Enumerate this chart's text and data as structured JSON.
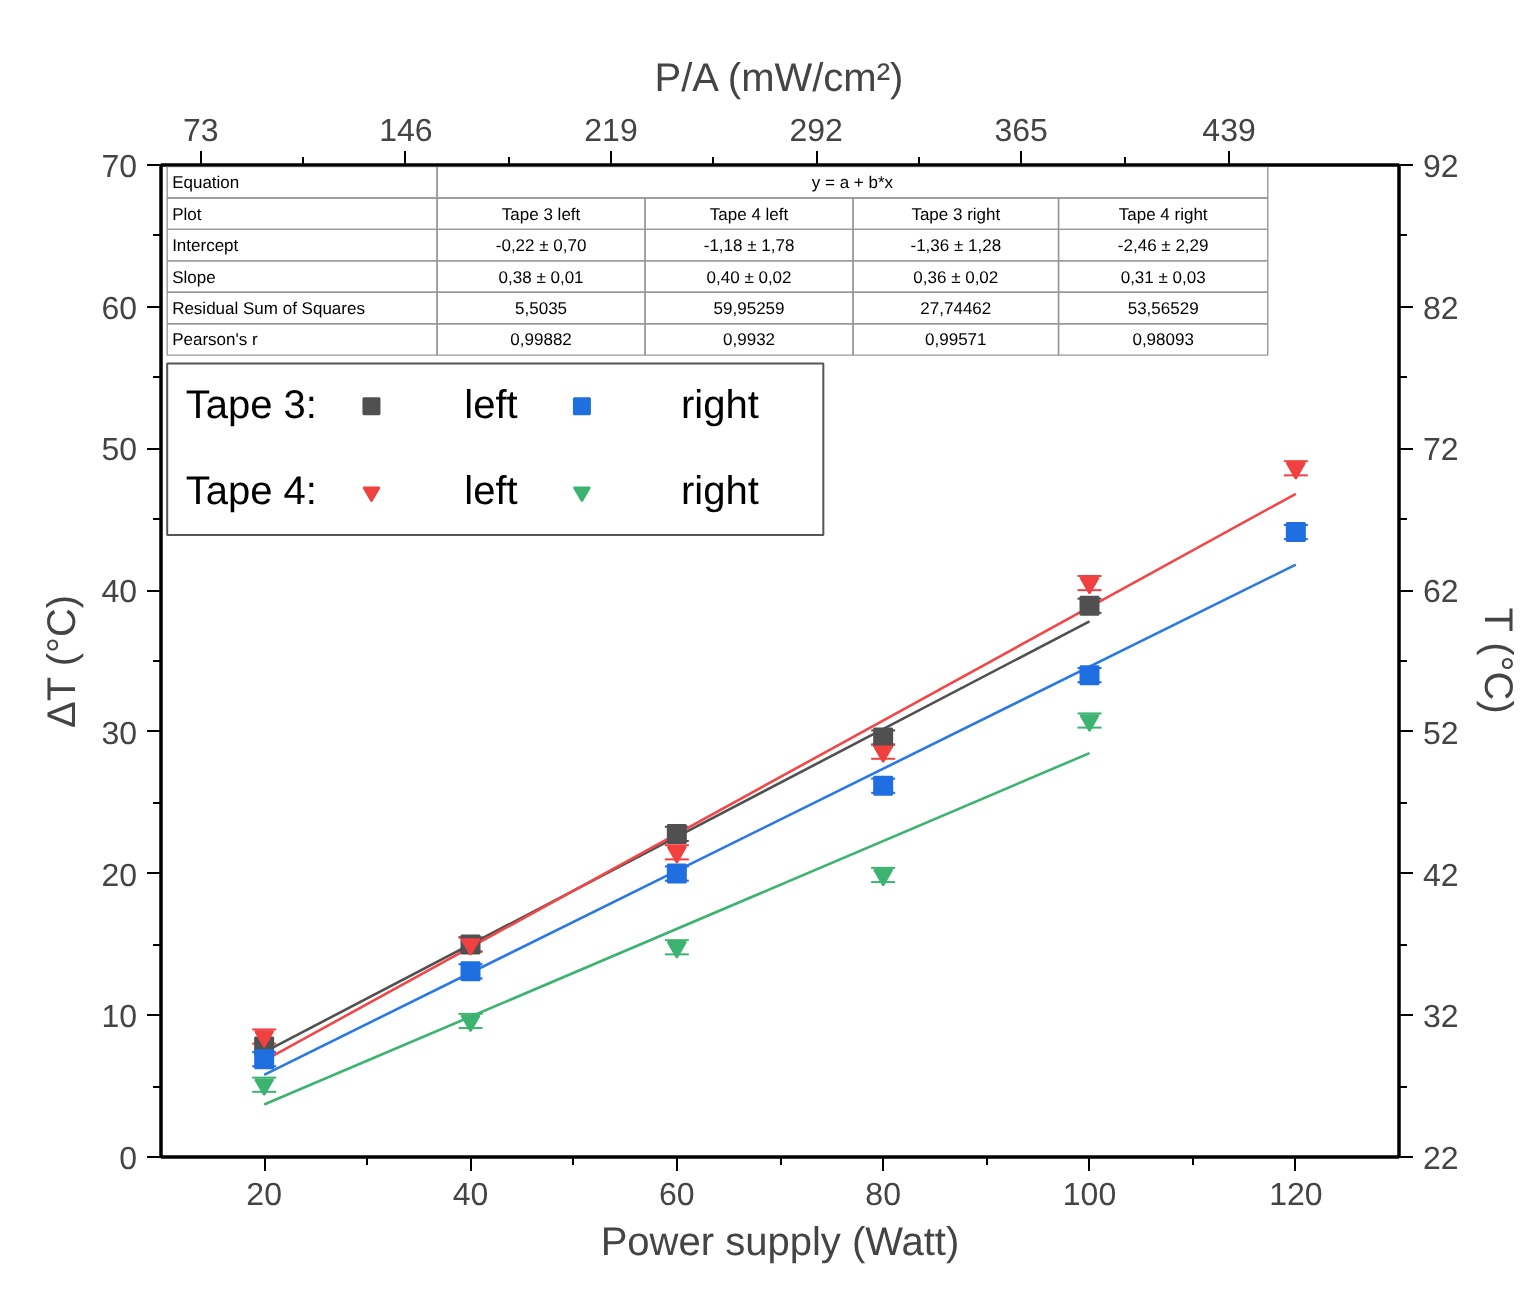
{
  "chart_data": {
    "type": "scatter",
    "xlabel": "Power supply (Watt)",
    "ylabel": "ΔT (°C)",
    "y2label": "T (°C)",
    "x2label": "P/A (mW/cm²)",
    "xlim": [
      10,
      130
    ],
    "xticks": [
      20,
      40,
      60,
      80,
      100,
      120
    ],
    "ylim": [
      0,
      70
    ],
    "yticks": [
      0,
      10,
      20,
      30,
      40,
      50,
      60,
      70
    ],
    "y2lim": [
      22,
      92
    ],
    "y2ticks": [
      22,
      32,
      42,
      52,
      62,
      72,
      82,
      92
    ],
    "x2lim": [
      58.8,
      499.5
    ],
    "x2ticks": [
      73,
      146,
      219,
      292,
      365,
      439
    ],
    "grid": false,
    "legend": "top left",
    "series": [
      {
        "type": "line",
        "color": "#505050",
        "x": [
          20,
          100
        ],
        "values": [
          7.4,
          37.8
        ]
      },
      {
        "type": "line",
        "color": "#f04848",
        "x": [
          20,
          120
        ],
        "values": [
          6.8,
          46.8
        ]
      },
      {
        "type": "line",
        "color": "#2a78e4",
        "x": [
          20,
          120
        ],
        "values": [
          5.8,
          41.8
        ]
      },
      {
        "type": "line",
        "color": "#3cb371",
        "x": [
          20,
          100
        ],
        "values": [
          3.7,
          28.5
        ]
      },
      {
        "name": "left",
        "color": "#505050",
        "marker": "square",
        "x": [
          20,
          40,
          60,
          80,
          100
        ],
        "values": [
          7.8,
          15.0,
          22.8,
          29.6,
          38.9
        ],
        "errors": [
          null,
          0.5,
          0.5,
          0.5,
          0.5
        ]
      },
      {
        "name": "right",
        "color": "#1f6fe0",
        "marker": "square",
        "x": [
          20,
          40,
          60,
          80,
          100,
          120
        ],
        "values": [
          6.9,
          13.1,
          20.0,
          26.2,
          34.0,
          44.1
        ],
        "errors": [
          0.5,
          0.5,
          0.5,
          0.5,
          0.5,
          0.5
        ]
      },
      {
        "name": "left",
        "color": "#f04040",
        "marker": "triangle",
        "x": [
          20,
          40,
          60,
          80,
          100,
          120
        ],
        "values": [
          8.5,
          15.0,
          21.5,
          28.6,
          40.5,
          48.6
        ],
        "errors": [
          0.5,
          0.5,
          0.5,
          0.5,
          0.5,
          0.5
        ]
      },
      {
        "name": "right",
        "color": "#3cb371",
        "marker": "triangle",
        "x": [
          20,
          40,
          60,
          80,
          100
        ],
        "values": [
          5.1,
          9.6,
          14.8,
          19.9,
          30.8
        ],
        "errors": [
          0.5,
          0.5,
          0.5,
          0.5,
          0.5
        ]
      }
    ],
    "annotations": [
      "Equation",
      "y = a + b*x",
      "Plot",
      "Tape 3 left",
      "Tape 4 left",
      "Tape 3 right",
      "Tape 4 right",
      "Intercept",
      "-0,22 ± 0,70",
      "-1,18 ± 1,78",
      "-1,36 ± 1,28",
      "-2,46 ± 2,29",
      "Slope",
      "0,38 ± 0,01",
      "0,40 ± 0,02",
      "0,36 ± 0,02",
      "0,31 ± 0,03",
      "Residual Sum of Squares",
      "5,5035",
      "59,95259",
      "27,74462",
      "53,56529",
      "Pearson's r",
      "0,99882",
      "0,9932",
      "0,99571",
      "0,98093",
      "Tape 3:",
      "Tape 4:"
    ]
  }
}
